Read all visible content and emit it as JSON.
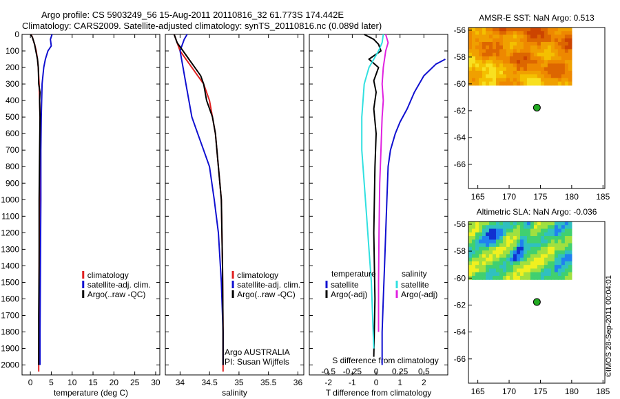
{
  "header": {
    "line1": "Argo profile: CS 5903249_56 15-Aug-2011 20110816_32 61.773S 174.442E",
    "line2": "Climatology: CARS2009. Satellite-adjusted climatology: synTS_20110816.nc (0.089d later)"
  },
  "side_stamp": "©IMOS 28-Sep-2011 00:04:01",
  "colors": {
    "black": "#000000",
    "red": "#e02020",
    "blue": "#1010d0",
    "cyan": "#30e0e0",
    "magenta": "#e020e0",
    "buoy": "#22aa22"
  },
  "chart_data": [
    {
      "type": "line",
      "id": "temperature",
      "xlabel": "temperature (deg C)",
      "xlim": [
        -2,
        31
      ],
      "xticks": [
        0,
        5,
        10,
        15,
        20,
        25,
        30
      ],
      "ylim": [
        2060,
        0
      ],
      "yticks": [
        0,
        100,
        200,
        300,
        400,
        500,
        600,
        700,
        800,
        900,
        1000,
        1100,
        1200,
        1300,
        1400,
        1500,
        1600,
        1700,
        1800,
        1900,
        2000
      ],
      "legend_position": "center",
      "legend": [
        "climatology",
        "satellite-adj. clim.",
        "Argo(..raw -QC)"
      ],
      "series": [
        {
          "name": "climatology",
          "color": "red",
          "x": [
            0.2,
            0.5,
            1.0,
            1.4,
            1.7,
            1.9,
            2.1,
            2.2,
            2.3,
            2.35,
            2.3,
            2.2,
            2.1,
            2.05,
            2.0,
            2.0
          ],
          "y": [
            0,
            20,
            60,
            100,
            150,
            200,
            300,
            400,
            500,
            600,
            800,
            1000,
            1400,
            1800,
            2000,
            2040
          ]
        },
        {
          "name": "satellite-adj. clim.",
          "color": "blue",
          "x": [
            5.2,
            4.8,
            5.0,
            4.2,
            3.6,
            3.2,
            2.8,
            2.6,
            2.5,
            2.5,
            2.4,
            2.3,
            2.3
          ],
          "y": [
            0,
            30,
            70,
            100,
            150,
            200,
            300,
            500,
            700,
            1000,
            1400,
            1800,
            2000
          ]
        },
        {
          "name": "Argo(..raw -QC)",
          "color": "black",
          "x": [
            0.1,
            0.5,
            1.0,
            1.3,
            1.7,
            1.9,
            2.0,
            2.3,
            2.2,
            2.3,
            2.2,
            2.1,
            2.1,
            2.0,
            2.0,
            2.0
          ],
          "y": [
            0,
            20,
            60,
            100,
            150,
            200,
            300,
            350,
            400,
            500,
            700,
            1000,
            1400,
            1700,
            1900,
            2000
          ]
        }
      ]
    },
    {
      "type": "line",
      "id": "salinity",
      "xlabel": "salinity",
      "xlim": [
        33.75,
        36.1
      ],
      "xticks": [
        34,
        34.5,
        35,
        35.5,
        36
      ],
      "xticklabels": [
        "34",
        "34.5",
        "35",
        "35.5",
        "36"
      ],
      "ylim": [
        2060,
        0
      ],
      "legend_position": "center",
      "legend": [
        "climatology",
        "satellite-adj. clim.",
        "Argo(..raw -QC)"
      ],
      "annotations": [
        "Argo AUSTRALIA",
        "PI: Susan Wijffels"
      ],
      "series": [
        {
          "name": "climatology",
          "color": "red",
          "x": [
            33.9,
            33.95,
            34.0,
            34.1,
            34.2,
            34.3,
            34.4,
            34.5,
            34.55,
            34.6,
            34.65,
            34.7,
            34.72,
            34.73,
            34.73
          ],
          "y": [
            0,
            50,
            100,
            150,
            200,
            250,
            300,
            400,
            500,
            600,
            800,
            1000,
            1400,
            1800,
            2040
          ]
        },
        {
          "name": "satellite-adj. clim.",
          "color": "blue",
          "x": [
            34.12,
            34.07,
            34.0,
            34.05,
            34.1,
            34.15,
            34.2,
            34.3,
            34.4,
            34.5,
            34.58,
            34.65,
            34.7,
            34.73,
            34.73
          ],
          "y": [
            0,
            30,
            100,
            200,
            300,
            400,
            500,
            600,
            700,
            800,
            1000,
            1200,
            1500,
            1800,
            2000
          ]
        },
        {
          "name": "Argo(..raw -QC)",
          "color": "black",
          "x": [
            33.9,
            33.95,
            34.05,
            34.15,
            34.25,
            34.35,
            34.4,
            34.45,
            34.55,
            34.6,
            34.65,
            34.7,
            34.72,
            34.73,
            34.73
          ],
          "y": [
            0,
            50,
            100,
            150,
            200,
            250,
            300,
            400,
            500,
            600,
            800,
            1000,
            1400,
            1800,
            2000
          ]
        }
      ]
    },
    {
      "type": "line",
      "id": "difference",
      "xlabel": "T difference from climatology",
      "xlim": [
        -2.8,
        3.0
      ],
      "xticks": [
        -2,
        -1,
        0,
        1,
        2
      ],
      "xlabel2": "S difference from climatology",
      "xticks2": [
        -0.5,
        -0.25,
        0,
        0.25,
        0.5
      ],
      "xticklabels2": [
        "-0.5",
        "-0.25",
        "0",
        "0.25",
        "0.5"
      ],
      "ylim": [
        2060,
        0
      ],
      "legend_position": "center",
      "legend_headers": [
        "temperature",
        "salinity"
      ],
      "legend": [
        "satellite",
        "Argo(-adj)",
        "satellite",
        "Argo(-adj)"
      ],
      "series": [
        {
          "name": "satellite",
          "color": "blue",
          "x": [
            2.9,
            2.5,
            2.0,
            1.6,
            1.3,
            1.0,
            0.8,
            0.6,
            0.5,
            0.45,
            0.4,
            0.35,
            0.3,
            0.25,
            0.25
          ],
          "y": [
            150,
            180,
            250,
            350,
            450,
            530,
            600,
            700,
            800,
            1000,
            1200,
            1400,
            1600,
            1800,
            2000
          ]
        },
        {
          "name": "Argo(-adj)",
          "color": "black",
          "x": [
            -0.5,
            -0.1,
            0.1,
            0.2,
            -0.3,
            0.1,
            -0.1,
            0.0,
            -0.1,
            0.0,
            -0.05,
            -0.1,
            -0.05,
            -0.1
          ],
          "y": [
            0,
            30,
            60,
            100,
            150,
            200,
            280,
            350,
            450,
            600,
            800,
            1200,
            1600,
            1950
          ]
        },
        {
          "name": "satellite",
          "color": "cyan",
          "x": [
            0.3,
            0.25,
            0.1,
            -0.3,
            -0.5,
            -0.6,
            -0.6,
            -0.5,
            -0.4,
            -0.3,
            -0.2,
            -0.15,
            -0.1
          ],
          "y": [
            0,
            50,
            100,
            200,
            300,
            500,
            700,
            900,
            1100,
            1300,
            1500,
            1700,
            1900
          ]
        },
        {
          "name": "Argo(-adj)",
          "color": "magenta",
          "x": [
            0.4,
            0.5,
            0.4,
            0.3,
            0.25,
            0.3,
            0.25,
            0.2,
            0.15,
            0.12,
            0.1,
            0.1
          ],
          "y": [
            0,
            50,
            100,
            200,
            300,
            400,
            500,
            700,
            900,
            1200,
            1500,
            1800
          ]
        }
      ]
    },
    {
      "type": "heatmap",
      "id": "sst",
      "title": "AMSR-E SST: NaN Argo: 0.513",
      "xlim": [
        163.5,
        185.3
      ],
      "xticks": [
        165,
        170,
        175,
        180,
        185
      ],
      "ylim": [
        -67.8,
        -55.8
      ],
      "yticks": [
        -56,
        -58,
        -60,
        -62,
        -64,
        -66
      ],
      "field_extent": {
        "x": [
          163.5,
          180
        ],
        "y": [
          -60.1,
          -55.8
        ]
      },
      "palette": [
        "#cc4400",
        "#dd6600",
        "#ee8800",
        "#f0a000",
        "#f4c000",
        "#f8e020"
      ],
      "marker": {
        "lon": 174.442,
        "lat": -61.773
      }
    },
    {
      "type": "heatmap",
      "id": "sla",
      "title": "Altimetric SLA: NaN Argo: -0.036",
      "xlim": [
        163.5,
        185.3
      ],
      "xticks": [
        165,
        170,
        175,
        180,
        185
      ],
      "ylim": [
        -67.8,
        -55.8
      ],
      "yticks": [
        -56,
        -58,
        -60,
        -62,
        -64,
        -66
      ],
      "field_extent": {
        "x": [
          163.5,
          180
        ],
        "y": [
          -60.1,
          -55.8
        ]
      },
      "palette": [
        "#1030d0",
        "#2080f0",
        "#30c0c0",
        "#40d070",
        "#a0e040",
        "#f0f020"
      ],
      "marker": {
        "lon": 174.442,
        "lat": -61.773
      }
    }
  ]
}
